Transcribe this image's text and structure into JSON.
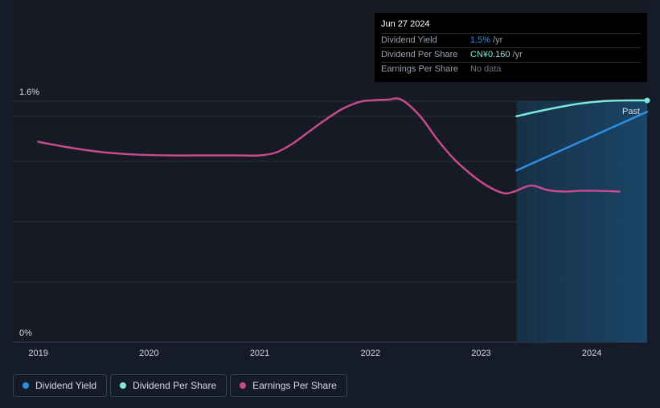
{
  "colors": {
    "dividend_yield": "#2e8fe0",
    "dividend_per_share": "#7ee8da",
    "earnings_per_share": "#c74a8c",
    "grid": "#2b3140",
    "forecast_fill": "#1a4a6e"
  },
  "tooltip": {
    "date": "Jun 27 2024",
    "rows": [
      {
        "label": "Dividend Yield",
        "value": "1.5%",
        "unit": "/yr"
      },
      {
        "label": "Dividend Per Share",
        "value": "CN¥0.160",
        "unit": "/yr"
      },
      {
        "label": "Earnings Per Share",
        "value": "No data",
        "unit": ""
      }
    ]
  },
  "past_label": "Past",
  "legend": [
    {
      "label": "Dividend Yield",
      "color_key": "dividend_yield"
    },
    {
      "label": "Dividend Per Share",
      "color_key": "dividend_per_share"
    },
    {
      "label": "Earnings Per Share",
      "color_key": "earnings_per_share"
    }
  ],
  "chart_data": {
    "type": "line",
    "title": "",
    "xlabel": "",
    "ylabel": "",
    "x_ticks": [
      "2019",
      "2020",
      "2021",
      "2022",
      "2023",
      "2024"
    ],
    "x_tick_values": [
      2019,
      2020,
      2021,
      2022,
      2023,
      2024
    ],
    "xlim": [
      2018.77,
      2024.5
    ],
    "y_ticks": [
      "1.6%",
      "0%"
    ],
    "ylim": [
      0,
      1.6
    ],
    "grid": true,
    "past_region_start": 2023.32,
    "series": [
      {
        "name": "Dividend Yield",
        "color_key": "dividend_yield",
        "x": [
          2023.32,
          2024.5
        ],
        "y": [
          1.14,
          1.53
        ]
      },
      {
        "name": "Dividend Per Share",
        "color_key": "dividend_per_share",
        "x": [
          2023.32,
          2023.5,
          2023.7,
          2023.9,
          2024.1,
          2024.3,
          2024.5
        ],
        "y": [
          1.5,
          1.53,
          1.56,
          1.585,
          1.6,
          1.605,
          1.605
        ]
      },
      {
        "name": "Earnings Per Share",
        "color_key": "earnings_per_share",
        "x": [
          2019.0,
          2019.3,
          2019.6,
          2019.9,
          2020.2,
          2020.5,
          2020.8,
          2021.0,
          2021.15,
          2021.3,
          2021.45,
          2021.6,
          2021.75,
          2021.9,
          2022.0,
          2022.15,
          2022.28,
          2022.45,
          2022.6,
          2022.75,
          2022.9,
          2023.05,
          2023.2,
          2023.3,
          2023.45,
          2023.6,
          2023.75,
          2023.9,
          2024.05,
          2024.25
        ],
        "y": [
          1.33,
          1.29,
          1.26,
          1.245,
          1.24,
          1.24,
          1.24,
          1.24,
          1.26,
          1.32,
          1.4,
          1.48,
          1.55,
          1.595,
          1.605,
          1.61,
          1.61,
          1.5,
          1.35,
          1.22,
          1.12,
          1.04,
          0.99,
          1.0,
          1.04,
          1.01,
          1.0,
          1.005,
          1.005,
          1.0
        ]
      }
    ]
  }
}
